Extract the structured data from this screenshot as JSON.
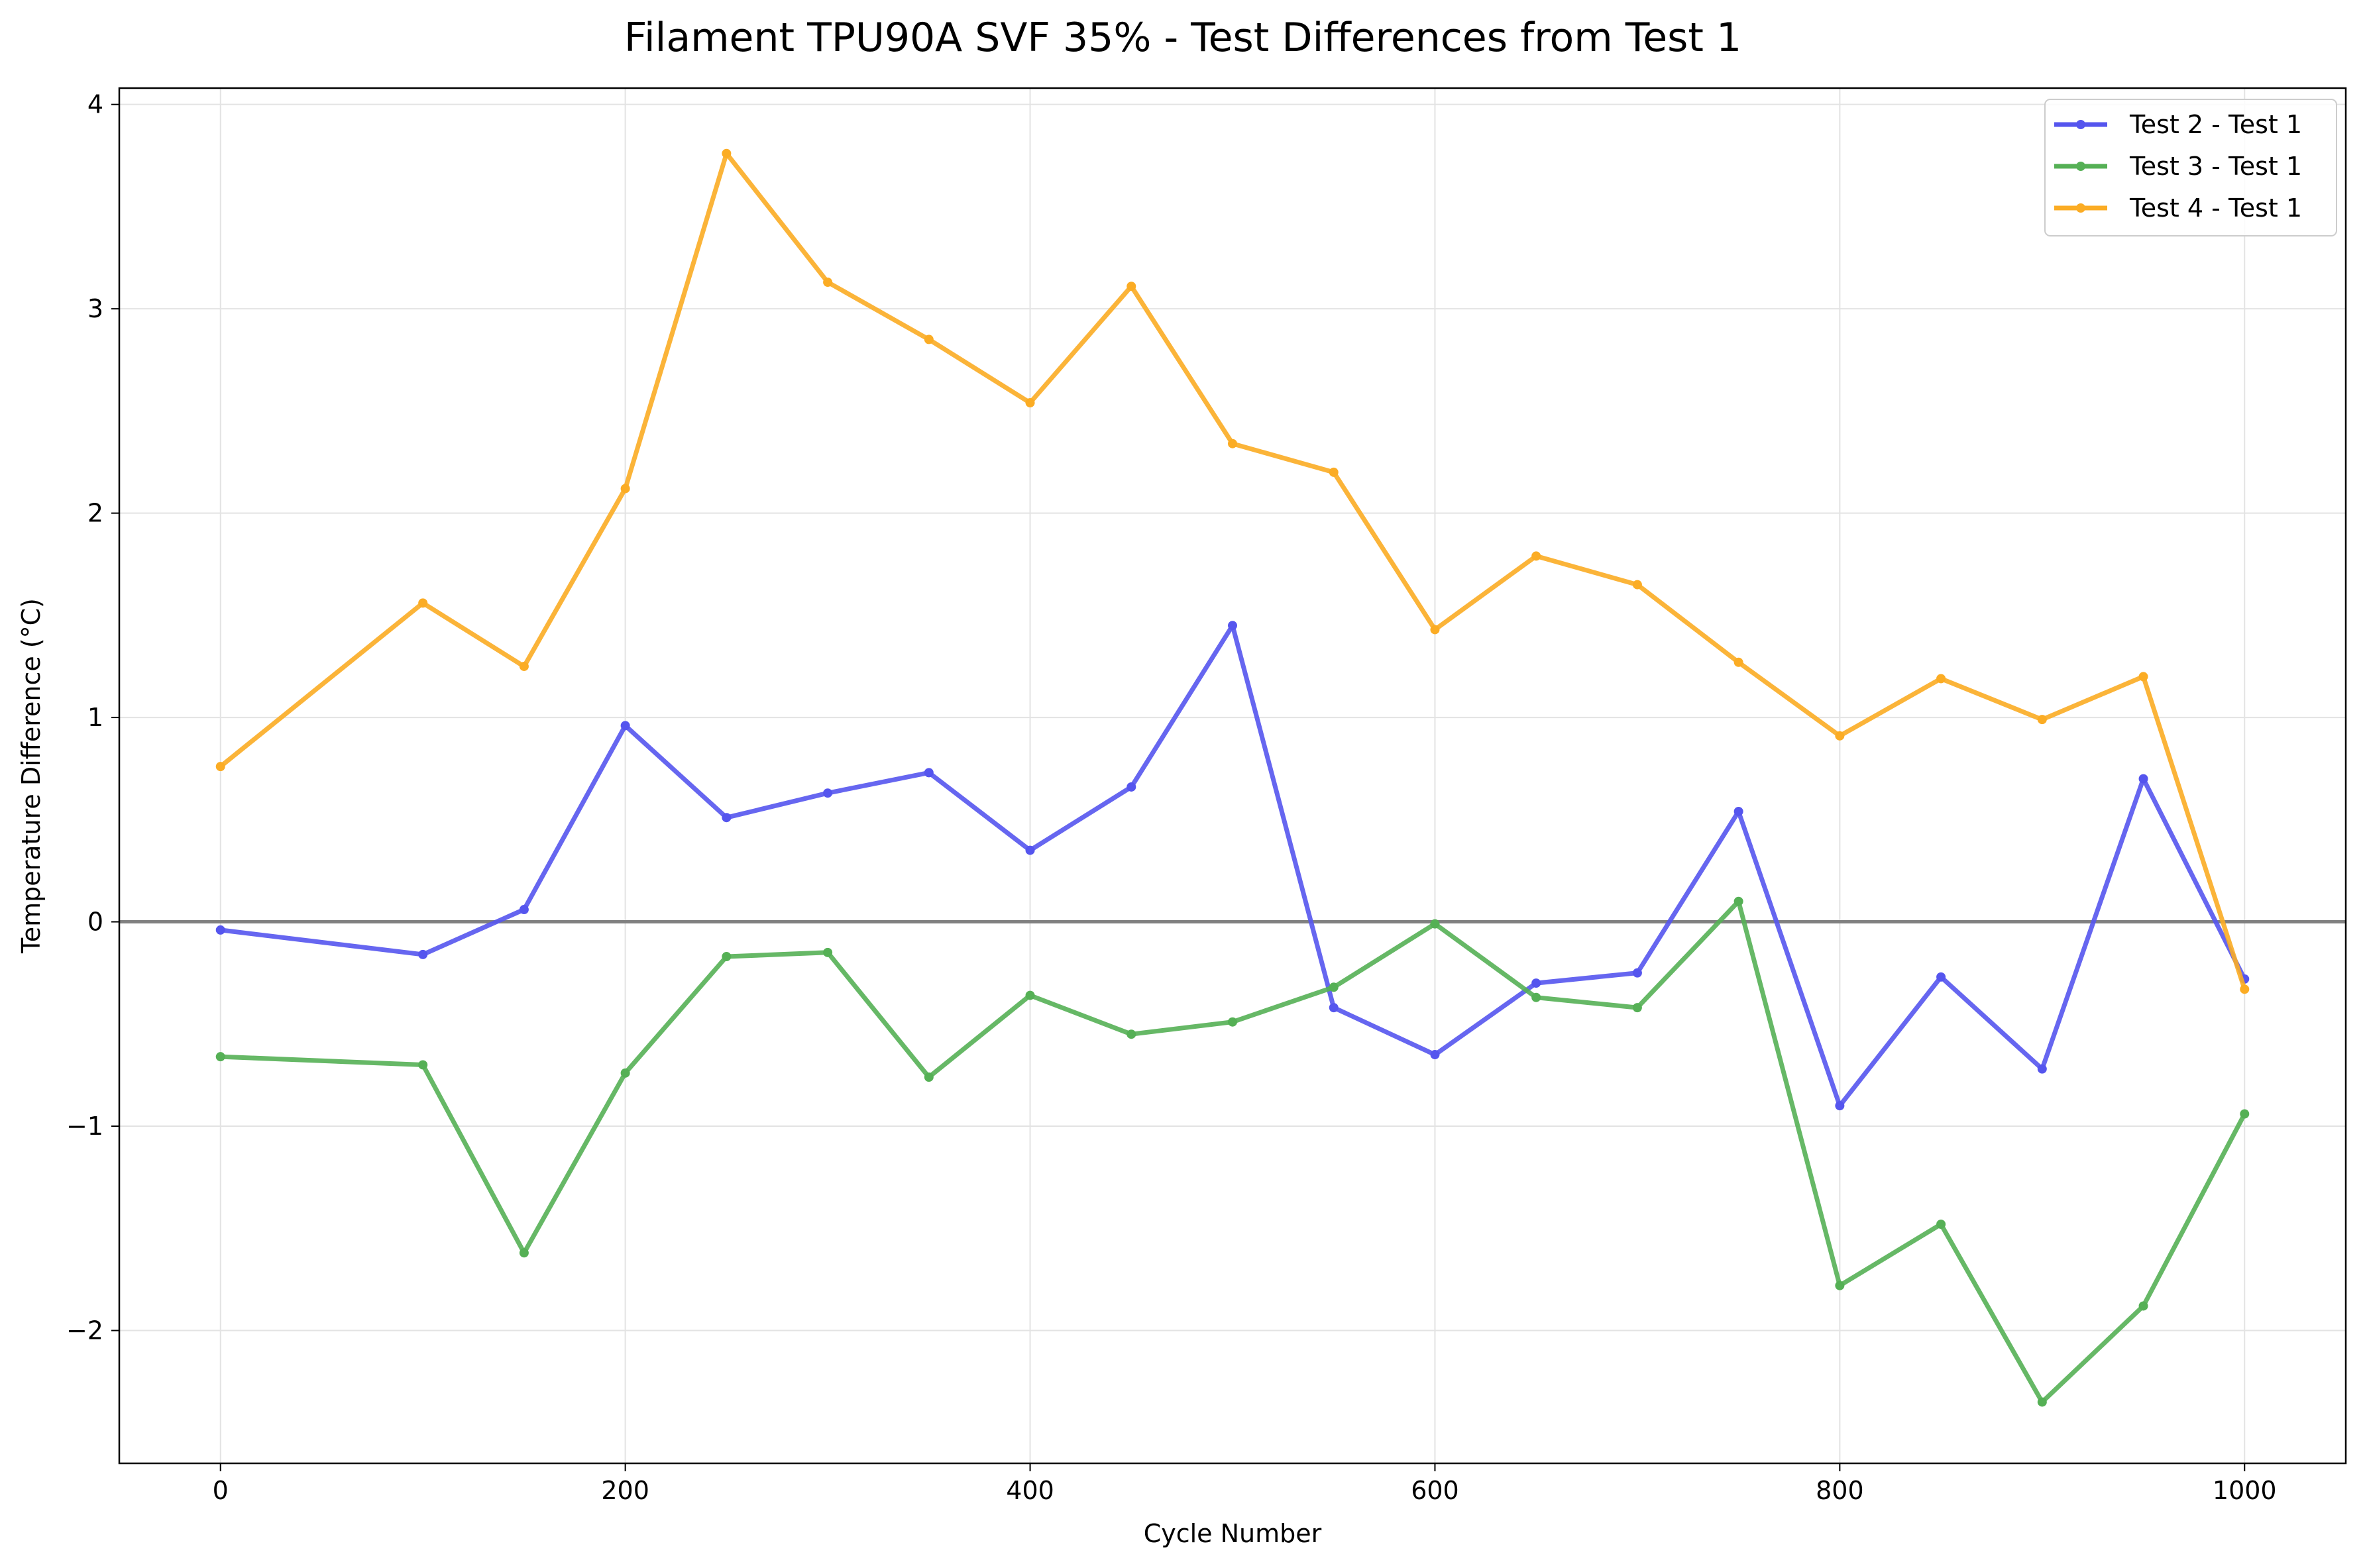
{
  "chart_data": {
    "type": "line",
    "title": "Filament TPU90A SVF 35% - Test Differences from Test 1",
    "xlabel": "Cycle Number",
    "ylabel": "Temperature Difference (°C)",
    "xlim": [
      -50,
      1050
    ],
    "ylim": [
      -2.65,
      4.08
    ],
    "xticks": [
      0,
      200,
      400,
      600,
      800,
      1000
    ],
    "xtick_labels": [
      "0",
      "200",
      "400",
      "600",
      "800",
      "1000"
    ],
    "yticks": [
      -2,
      -1,
      0,
      1,
      2,
      3,
      4
    ],
    "ytick_labels": [
      "−2",
      "−1",
      "0",
      "1",
      "2",
      "3",
      "4"
    ],
    "grid": true,
    "legend_position": "top-right",
    "reference_line": {
      "y": 0,
      "color": "#808080"
    },
    "x": [
      0,
      100,
      150,
      200,
      250,
      300,
      350,
      400,
      450,
      500,
      550,
      600,
      650,
      700,
      750,
      800,
      850,
      900,
      950,
      1000
    ],
    "series": [
      {
        "name": "Test 2 - Test 1",
        "color": "#5555ee",
        "values": [
          -0.04,
          -0.16,
          0.06,
          0.96,
          0.51,
          0.63,
          0.73,
          0.35,
          0.66,
          1.45,
          -0.42,
          -0.65,
          -0.3,
          -0.25,
          0.54,
          -0.9,
          -0.27,
          -0.72,
          0.7,
          -0.28
        ]
      },
      {
        "name": "Test 3 - Test 1",
        "color": "#55b055",
        "values": [
          -0.66,
          -0.7,
          -1.62,
          -0.74,
          -0.17,
          -0.15,
          -0.76,
          -0.36,
          -0.55,
          -0.49,
          -0.32,
          -0.01,
          -0.37,
          -0.42,
          0.1,
          -1.78,
          -1.48,
          -2.35,
          -1.88,
          -0.94
        ]
      },
      {
        "name": "Test 4 - Test 1",
        "color": "#fbac24",
        "values": [
          0.76,
          1.56,
          1.25,
          2.12,
          3.76,
          3.13,
          2.85,
          2.54,
          3.11,
          2.34,
          2.2,
          1.43,
          1.79,
          1.65,
          1.27,
          0.91,
          1.19,
          0.99,
          1.2,
          -0.33
        ]
      }
    ]
  }
}
